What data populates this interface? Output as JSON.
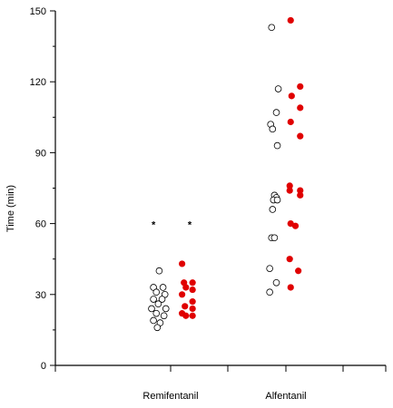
{
  "chart_data": {
    "type": "scatter",
    "title": "",
    "xlabel": "",
    "ylabel": "Time (min)",
    "ylim": [
      0,
      150
    ],
    "yticks": [
      0,
      30,
      60,
      90,
      120,
      150
    ],
    "categories": [
      "Remifentanil",
      "Alfentanil"
    ],
    "grid": false,
    "legend": "none",
    "colors": {
      "open": "#000000",
      "filled": "#e00000",
      "axis": "#000000"
    },
    "series": [
      {
        "marker": "open-circle",
        "color": "#000000",
        "points": [
          {
            "group": "Remifentanil",
            "y": 40,
            "offset": -0.12
          },
          {
            "group": "Remifentanil",
            "y": 33,
            "offset": -0.18
          },
          {
            "group": "Remifentanil",
            "y": 33,
            "offset": -0.08
          },
          {
            "group": "Remifentanil",
            "y": 31,
            "offset": -0.15
          },
          {
            "group": "Remifentanil",
            "y": 30,
            "offset": -0.06
          },
          {
            "group": "Remifentanil",
            "y": 28,
            "offset": -0.18
          },
          {
            "group": "Remifentanil",
            "y": 28,
            "offset": -0.09
          },
          {
            "group": "Remifentanil",
            "y": 26,
            "offset": -0.13
          },
          {
            "group": "Remifentanil",
            "y": 24,
            "offset": -0.05
          },
          {
            "group": "Remifentanil",
            "y": 24,
            "offset": -0.2
          },
          {
            "group": "Remifentanil",
            "y": 22,
            "offset": -0.15
          },
          {
            "group": "Remifentanil",
            "y": 21,
            "offset": -0.07
          },
          {
            "group": "Remifentanil",
            "y": 19,
            "offset": -0.18
          },
          {
            "group": "Remifentanil",
            "y": 18,
            "offset": -0.11
          },
          {
            "group": "Remifentanil",
            "y": 16,
            "offset": -0.14
          },
          {
            "group": "Alfentanil",
            "y": 143,
            "offset": -0.15
          },
          {
            "group": "Alfentanil",
            "y": 117,
            "offset": -0.08
          },
          {
            "group": "Alfentanil",
            "y": 107,
            "offset": -0.1
          },
          {
            "group": "Alfentanil",
            "y": 102,
            "offset": -0.16
          },
          {
            "group": "Alfentanil",
            "y": 100,
            "offset": -0.14
          },
          {
            "group": "Alfentanil",
            "y": 93,
            "offset": -0.09
          },
          {
            "group": "Alfentanil",
            "y": 72,
            "offset": -0.12
          },
          {
            "group": "Alfentanil",
            "y": 71,
            "offset": -0.1
          },
          {
            "group": "Alfentanil",
            "y": 70,
            "offset": -0.13
          },
          {
            "group": "Alfentanil",
            "y": 70,
            "offset": -0.09
          },
          {
            "group": "Alfentanil",
            "y": 66,
            "offset": -0.14
          },
          {
            "group": "Alfentanil",
            "y": 54,
            "offset": -0.15
          },
          {
            "group": "Alfentanil",
            "y": 54,
            "offset": -0.12
          },
          {
            "group": "Alfentanil",
            "y": 41,
            "offset": -0.17
          },
          {
            "group": "Alfentanil",
            "y": 35,
            "offset": -0.1
          },
          {
            "group": "Alfentanil",
            "y": 31,
            "offset": -0.17
          }
        ]
      },
      {
        "marker": "filled-circle",
        "color": "#e00000",
        "points": [
          {
            "group": "Remifentanil",
            "y": 43,
            "offset": 0.12
          },
          {
            "group": "Remifentanil",
            "y": 35,
            "offset": 0.14
          },
          {
            "group": "Remifentanil",
            "y": 35,
            "offset": 0.23
          },
          {
            "group": "Remifentanil",
            "y": 33,
            "offset": 0.16
          },
          {
            "group": "Remifentanil",
            "y": 32,
            "offset": 0.23
          },
          {
            "group": "Remifentanil",
            "y": 30,
            "offset": 0.12
          },
          {
            "group": "Remifentanil",
            "y": 27,
            "offset": 0.23
          },
          {
            "group": "Remifentanil",
            "y": 25,
            "offset": 0.15
          },
          {
            "group": "Remifentanil",
            "y": 24,
            "offset": 0.23
          },
          {
            "group": "Remifentanil",
            "y": 22,
            "offset": 0.12
          },
          {
            "group": "Remifentanil",
            "y": 21,
            "offset": 0.16
          },
          {
            "group": "Remifentanil",
            "y": 21,
            "offset": 0.23
          },
          {
            "group": "Alfentanil",
            "y": 146,
            "offset": 0.05
          },
          {
            "group": "Alfentanil",
            "y": 118,
            "offset": 0.15
          },
          {
            "group": "Alfentanil",
            "y": 114,
            "offset": 0.06
          },
          {
            "group": "Alfentanil",
            "y": 109,
            "offset": 0.15
          },
          {
            "group": "Alfentanil",
            "y": 103,
            "offset": 0.05
          },
          {
            "group": "Alfentanil",
            "y": 97,
            "offset": 0.15
          },
          {
            "group": "Alfentanil",
            "y": 76,
            "offset": 0.04
          },
          {
            "group": "Alfentanil",
            "y": 74,
            "offset": 0.04
          },
          {
            "group": "Alfentanil",
            "y": 74,
            "offset": 0.15
          },
          {
            "group": "Alfentanil",
            "y": 72,
            "offset": 0.15
          },
          {
            "group": "Alfentanil",
            "y": 60,
            "offset": 0.05
          },
          {
            "group": "Alfentanil",
            "y": 59,
            "offset": 0.1
          },
          {
            "group": "Alfentanil",
            "y": 45,
            "offset": 0.04
          },
          {
            "group": "Alfentanil",
            "y": 40,
            "offset": 0.13
          },
          {
            "group": "Alfentanil",
            "y": 33,
            "offset": 0.05
          }
        ]
      }
    ],
    "annotations": [
      {
        "text": "*",
        "group": "Remifentanil",
        "y": 60,
        "offset": -0.18
      },
      {
        "text": "*",
        "group": "Remifentanil",
        "y": 60,
        "offset": 0.2
      }
    ]
  }
}
